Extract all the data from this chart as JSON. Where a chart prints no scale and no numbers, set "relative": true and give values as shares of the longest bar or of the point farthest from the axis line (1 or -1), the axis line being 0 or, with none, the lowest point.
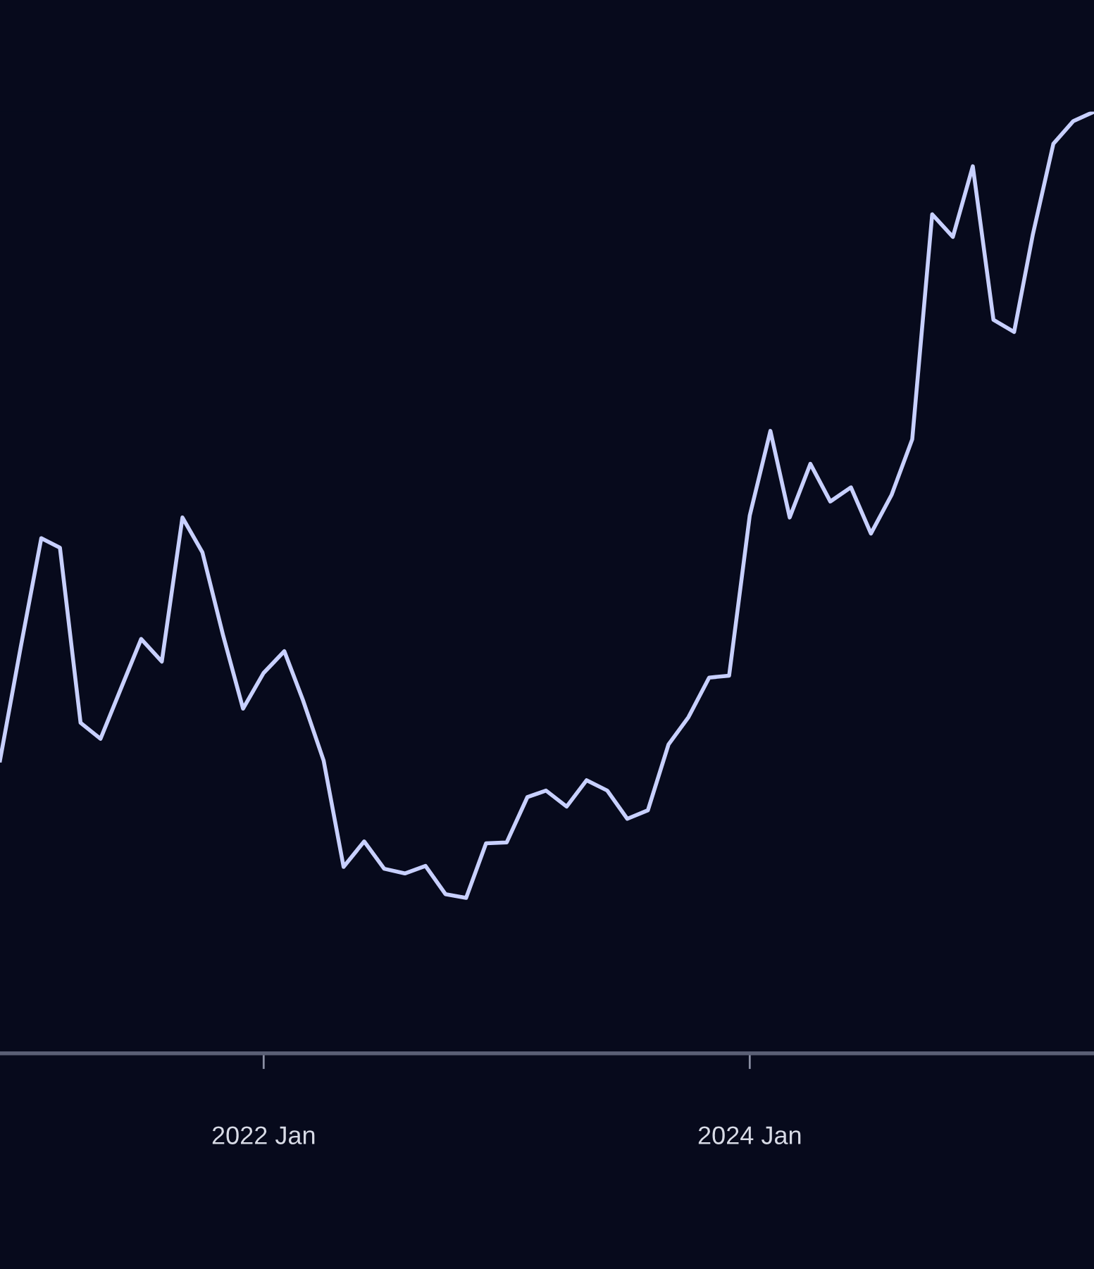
{
  "chart_data": {
    "type": "line",
    "relative": true,
    "x": [
      "2020-12",
      "2021-01",
      "2021-02",
      "2021-03",
      "2021-04",
      "2021-05",
      "2021-06",
      "2021-07",
      "2021-08",
      "2021-09",
      "2021-10",
      "2021-11",
      "2021-12",
      "2022-01",
      "2022-02",
      "2022-03",
      "2022-04",
      "2022-05",
      "2022-06",
      "2022-07",
      "2022-08",
      "2022-09",
      "2022-10",
      "2022-11",
      "2022-12",
      "2023-01",
      "2023-02",
      "2023-03",
      "2023-04",
      "2023-05",
      "2023-06",
      "2023-07",
      "2023-08",
      "2023-09",
      "2023-10",
      "2023-11",
      "2023-12",
      "2024-01",
      "2024-02",
      "2024-03",
      "2024-04",
      "2024-05",
      "2024-06",
      "2024-07",
      "2024-08",
      "2024-09",
      "2024-10",
      "2024-11",
      "2024-12",
      "2025-01",
      "2025-02",
      "2025-03",
      "2025-04",
      "2025-05",
      "2025-06"
    ],
    "series": [
      {
        "color": "#c8d0ff",
        "values": [
          0.311,
          0.431,
          0.547,
          0.537,
          0.351,
          0.334,
          0.388,
          0.44,
          0.416,
          0.569,
          0.532,
          0.444,
          0.366,
          0.404,
          0.427,
          0.375,
          0.311,
          0.198,
          0.225,
          0.196,
          0.191,
          0.199,
          0.169,
          0.165,
          0.223,
          0.224,
          0.272,
          0.279,
          0.262,
          0.29,
          0.279,
          0.249,
          0.258,
          0.328,
          0.357,
          0.399,
          0.401,
          0.571,
          0.661,
          0.569,
          0.626,
          0.586,
          0.601,
          0.552,
          0.593,
          0.652,
          0.891,
          0.867,
          0.942,
          0.779,
          0.766,
          0.869,
          0.966,
          0.99,
          1.0
        ]
      }
    ],
    "xticks": [
      {
        "value": "2022-01",
        "label": "2022 Jan"
      },
      {
        "value": "2024-01",
        "label": "2024 Jan"
      }
    ],
    "xlim": [
      "2020-12",
      "2025-06"
    ],
    "grid": false,
    "legend": false,
    "marker": "none",
    "line_style": "solid",
    "tick_labels": "x"
  }
}
